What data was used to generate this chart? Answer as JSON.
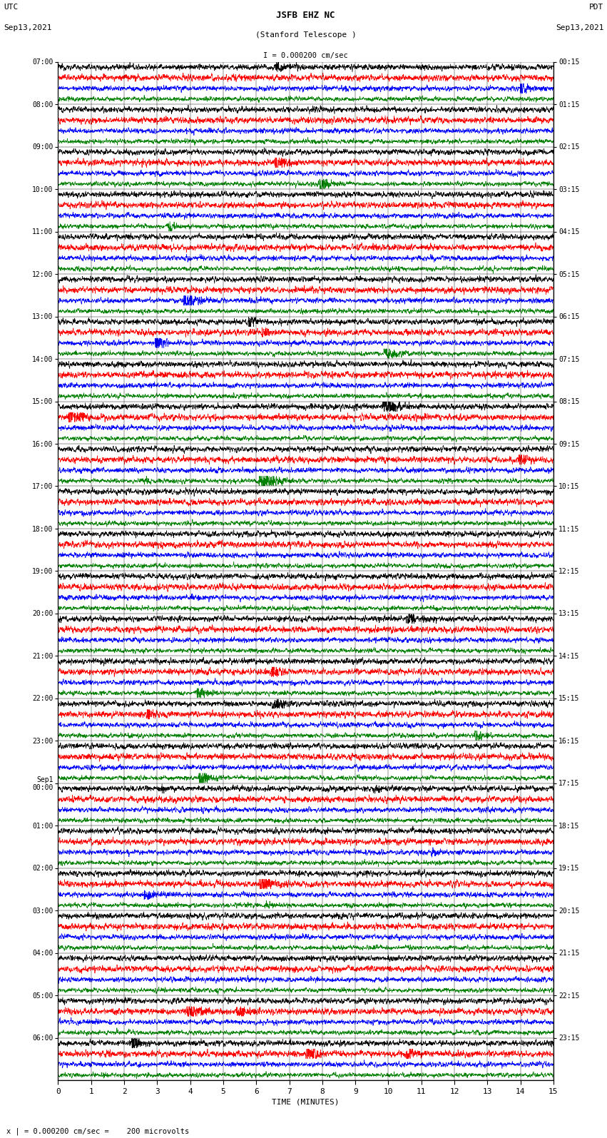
{
  "title_line1": "JSFB EHZ NC",
  "title_line2": "(Stanford Telescope )",
  "scale_label": "I = 0.000200 cm/sec",
  "utc_label": "UTC\nSep13,2021",
  "pdt_label": "PDT\nSep13,2021",
  "bottom_label": "x | = 0.000200 cm/sec =    200 microvolts",
  "xlabel": "TIME (MINUTES)",
  "left_times_utc": [
    "07:00",
    "08:00",
    "09:00",
    "10:00",
    "11:00",
    "12:00",
    "13:00",
    "14:00",
    "15:00",
    "16:00",
    "17:00",
    "18:00",
    "19:00",
    "20:00",
    "21:00",
    "22:00",
    "23:00",
    "Sep1\n00:00",
    "01:00",
    "02:00",
    "03:00",
    "04:00",
    "05:00",
    "06:00"
  ],
  "right_times_pdt": [
    "00:15",
    "01:15",
    "02:15",
    "03:15",
    "04:15",
    "05:15",
    "06:15",
    "07:15",
    "08:15",
    "09:15",
    "10:15",
    "11:15",
    "12:15",
    "13:15",
    "14:15",
    "15:15",
    "16:15",
    "17:15",
    "18:15",
    "19:15",
    "20:15",
    "21:15",
    "22:15",
    "23:15"
  ],
  "colors": [
    "black",
    "red",
    "blue",
    "green"
  ],
  "n_hours": 24,
  "n_cols": 4,
  "trace_duration_minutes": 15,
  "background_color": "white",
  "trace_linewidth": 0.5,
  "base_amplitude": 0.12,
  "spike_amplitude": 0.45,
  "fig_width": 8.5,
  "fig_height": 16.13,
  "dpi": 100
}
